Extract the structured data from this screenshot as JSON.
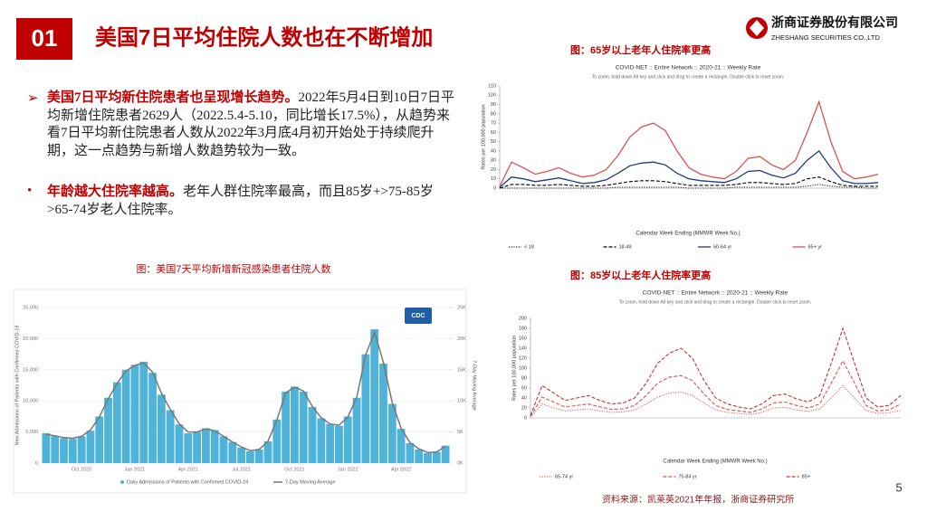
{
  "header": {
    "number": "01",
    "title": "美国7日平均住院人数也在不断增加",
    "logo_cn": "浙商证券股份有限公司",
    "logo_en": "ZHESHANG SECURITIES CO.,LTD"
  },
  "bullets": [
    {
      "lead": "美国7日平均新住院患者也呈现增长趋势。",
      "text": "2022年5月4日到10日7日平均新增住院患者2629人（2022.5.4-5.10，同比增长17.5%），从趋势来看7日平均新住院患者人数从2022年3月底4月初开始处于持续爬升期，这一点趋势与新增人数趋势较为一致。"
    },
    {
      "lead": "年龄越大住院率越高。",
      "text": "老年人群住院率最高，而且85岁+>75-85岁>65-74岁老人住院率。"
    }
  ],
  "captions": [
    "图：65岁以上老年人住院率更高",
    "图：美国7天平均新增新冠感染患者住院人数",
    "图：85岁以上老年人住院率更高"
  ],
  "source": "资料来源：凯莱英2021年年报，浙商证券研究所",
  "page_number": "5",
  "chart_data": [
    {
      "type": "line",
      "title": "COVID-NET :: Entire Network :: 2020-21 :: Weekly Rate",
      "subtitle": "To zoom, hold down Alt key and click and drag to create a rectangle. Double click to reset zoom.",
      "x_label": "Calendar Week Ending (MMWR Week No.)",
      "y_label": "Rates per 100,000 population",
      "categories": [
        null,
        null,
        null,
        null,
        null,
        null,
        null,
        null,
        null,
        null,
        null,
        null,
        null,
        null,
        null,
        null,
        null,
        null,
        null,
        null,
        null,
        null,
        null,
        null,
        null,
        null,
        null,
        null,
        null,
        null,
        null,
        null,
        null
      ],
      "ylim": [
        0,
        110
      ],
      "yticks": [
        0,
        10,
        20,
        30,
        40,
        50,
        60,
        70,
        80,
        90,
        100,
        110
      ],
      "grid": false,
      "series": [
        {
          "name": "< 18",
          "color": "#222222",
          "style": "dotted",
          "values": [
            0,
            0,
            0,
            0,
            0,
            0,
            0,
            0,
            0,
            0,
            1,
            1,
            1,
            1,
            1,
            1,
            0,
            0,
            0,
            0,
            1,
            1,
            1,
            1,
            1,
            1,
            2,
            4,
            2,
            1,
            1,
            0,
            0
          ]
        },
        {
          "name": "18-49",
          "color": "#000000",
          "style": "dashed",
          "values": [
            0,
            4,
            4,
            3,
            3,
            4,
            3,
            2,
            2,
            3,
            5,
            7,
            8,
            8,
            7,
            5,
            3,
            3,
            3,
            3,
            4,
            6,
            6,
            5,
            4,
            5,
            10,
            12,
            7,
            3,
            2,
            2,
            2
          ]
        },
        {
          "name": "50-64 yr",
          "color": "#1f3a7a",
          "style": "solid",
          "values": [
            1,
            12,
            10,
            7,
            9,
            11,
            8,
            5,
            6,
            9,
            16,
            24,
            27,
            28,
            25,
            16,
            10,
            8,
            7,
            6,
            10,
            18,
            19,
            14,
            11,
            16,
            30,
            40,
            22,
            8,
            5,
            5,
            6
          ]
        },
        {
          "name": "65+ yr",
          "color": "#d9534f",
          "style": "solid",
          "values": [
            2,
            28,
            22,
            15,
            18,
            22,
            16,
            12,
            14,
            20,
            35,
            55,
            66,
            70,
            62,
            40,
            22,
            15,
            12,
            10,
            18,
            32,
            34,
            25,
            20,
            30,
            60,
            93,
            50,
            18,
            10,
            12,
            15
          ]
        }
      ]
    },
    {
      "type": "bar",
      "y_label": "New Admissions of Patients with Confirmed COVID-19",
      "y2_label": "7-Day Moving Average",
      "badge": "CDC",
      "categories": [
        null,
        null,
        null,
        null,
        "Oct 2020",
        null,
        null,
        null,
        null,
        null,
        "Jan 2021",
        null,
        null,
        null,
        null,
        null,
        "Apr 2021",
        null,
        null,
        null,
        null,
        null,
        "Jul 2021",
        null,
        null,
        null,
        null,
        null,
        "Oct 2021",
        null,
        null,
        null,
        null,
        null,
        "Jan 2022",
        null,
        null,
        null,
        null,
        null,
        "Apr 2022",
        null,
        null,
        null,
        null,
        null
      ],
      "ylim": [
        0,
        25000
      ],
      "yticks": [
        0,
        {
          "value": 5000,
          "label": "5,000"
        },
        {
          "value": 10000,
          "label": "10,000"
        },
        {
          "value": 15000,
          "label": "15,000"
        },
        {
          "value": 20000,
          "label": "20,000"
        },
        {
          "value": 25000,
          "label": "25,000"
        }
      ],
      "y2lim": [
        0,
        25000
      ],
      "y2ticks": [
        {
          "value": 0,
          "label": "0K"
        },
        {
          "value": 5000,
          "label": "5K"
        },
        {
          "value": 10000,
          "label": "10K"
        },
        {
          "value": 15000,
          "label": "15K"
        },
        {
          "value": 20000,
          "label": "20K"
        },
        {
          "value": 25000,
          "label": "25K"
        }
      ],
      "grid": true,
      "series": [
        {
          "name": "Daily Admissions of Patients with Confirmed COVID-19",
          "color": "#4fb3d9",
          "values": [
            4800,
            4300,
            4000,
            3900,
            4300,
            5200,
            7500,
            10500,
            13000,
            15000,
            15800,
            16300,
            14500,
            11000,
            8500,
            6200,
            4800,
            5000,
            5600,
            5300,
            4300,
            3400,
            2500,
            1900,
            2200,
            3500,
            7000,
            11500,
            12300,
            11500,
            9000,
            7200,
            6300,
            6000,
            7500,
            10500,
            17500,
            21500,
            16000,
            9500,
            5500,
            3200,
            2200,
            1600,
            1800,
            2800
          ]
        },
        {
          "name": "7-Day Moving Average",
          "color": "#777777",
          "axis": "y2",
          "mark": "line",
          "values": [
            4600,
            4400,
            4100,
            4000,
            4300,
            5300,
            7400,
            10300,
            12800,
            14800,
            15700,
            16100,
            14600,
            11200,
            8600,
            6300,
            5000,
            5000,
            5500,
            5200,
            4300,
            3400,
            2600,
            2000,
            2200,
            3500,
            6900,
            11300,
            12200,
            11600,
            9100,
            7300,
            6300,
            6100,
            7400,
            10600,
            17400,
            21000,
            16200,
            9700,
            5600,
            3300,
            2300,
            1700,
            1800,
            2700
          ]
        }
      ]
    },
    {
      "type": "line",
      "title": "COVID-NET :: Entire Network :: 2020-21 :: Weekly Rate",
      "subtitle": "To zoom, hold down Alt key and click and drag to create a rectangle. Double click to reset zoom.",
      "x_label": "Calendar Week Ending (MMWR Week No.)",
      "y_label": "Rates per 100,000 population",
      "categories": [
        null,
        null,
        null,
        null,
        null,
        null,
        null,
        null,
        null,
        null,
        null,
        null,
        null,
        null,
        null,
        null,
        null,
        null,
        null,
        null,
        null,
        null,
        null,
        null,
        null,
        null,
        null,
        null,
        null,
        null,
        null,
        null,
        null
      ],
      "ylim": [
        0,
        200
      ],
      "yticks": [
        0,
        20,
        40,
        60,
        80,
        100,
        120,
        140,
        160,
        180,
        200
      ],
      "grid": false,
      "series": [
        {
          "name": "65-74 yr",
          "color": "#e06666",
          "style": "dotted",
          "values": [
            2,
            28,
            20,
            14,
            16,
            18,
            14,
            11,
            12,
            16,
            28,
            42,
            50,
            52,
            45,
            30,
            16,
            11,
            9,
            7,
            11,
            20,
            21,
            16,
            13,
            18,
            40,
            65,
            40,
            15,
            9,
            10,
            15
          ]
        },
        {
          "name": "75-84 yr",
          "color": "#d9534f",
          "style": "dashed",
          "values": [
            3,
            42,
            32,
            22,
            25,
            28,
            22,
            17,
            18,
            25,
            45,
            70,
            82,
            85,
            75,
            48,
            25,
            17,
            14,
            11,
            18,
            30,
            32,
            25,
            20,
            28,
            70,
            115,
            70,
            25,
            14,
            16,
            28
          ]
        },
        {
          "name": "85+",
          "color": "#c9302c",
          "style": "dashed",
          "values": [
            5,
            65,
            50,
            35,
            40,
            45,
            35,
            28,
            30,
            40,
            70,
            110,
            130,
            140,
            120,
            75,
            40,
            28,
            22,
            18,
            28,
            45,
            48,
            38,
            32,
            45,
            110,
            180,
            110,
            40,
            22,
            25,
            45
          ]
        }
      ]
    }
  ]
}
